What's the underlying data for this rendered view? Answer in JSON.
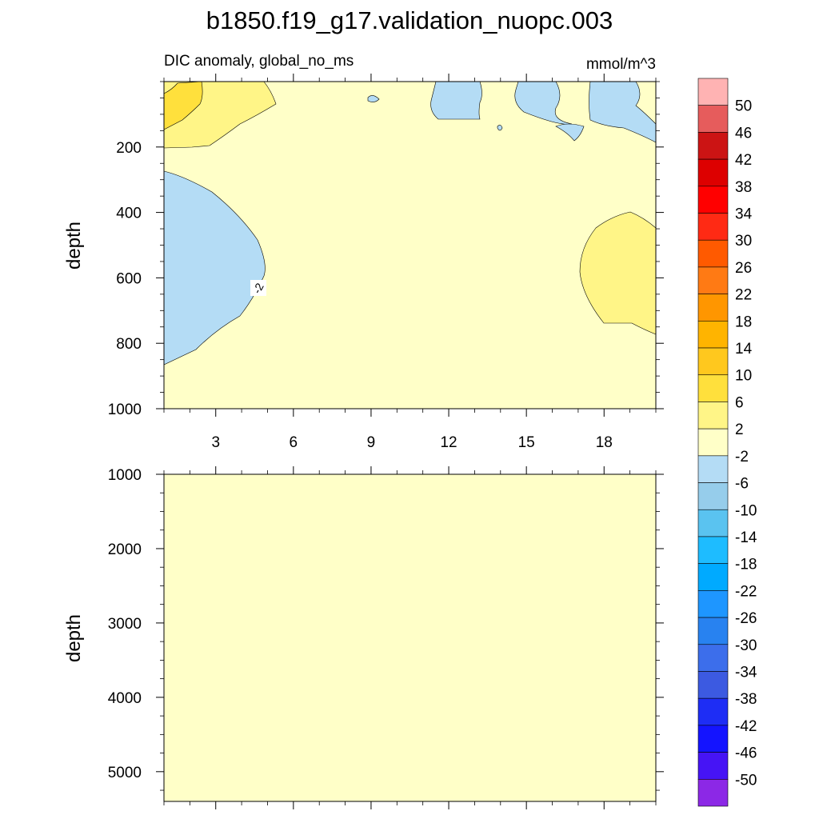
{
  "chart_data": {
    "type": "contour",
    "title": "b1850.f19_g17.validation_nuopc.003",
    "colorbar": {
      "levels": [
        50,
        46,
        42,
        38,
        34,
        30,
        26,
        22,
        18,
        14,
        10,
        6,
        2,
        -2,
        -6,
        -10,
        -14,
        -18,
        -22,
        -26,
        -30,
        -34,
        -38,
        -42,
        -46,
        -50
      ],
      "colors": [
        "#FFB3B3",
        "#E65C5C",
        "#CC1414",
        "#DD0000",
        "#FF0000",
        "#FF2A14",
        "#FF5A00",
        "#FF7A14",
        "#FF9600",
        "#FFB400",
        "#FFC81E",
        "#FFE03C",
        "#FFF587",
        "#FFFFC8",
        "#B4DCF5",
        "#96CDEB",
        "#5AC3F0",
        "#1EBCFF",
        "#00AAFF",
        "#1E96FF",
        "#2882F0",
        "#3C6EEB",
        "#3C5AE1",
        "#1E2DF5",
        "#1414FF",
        "#4614F5",
        "#8C28E6"
      ]
    },
    "panels": [
      {
        "subtitle_left": "DIC anomaly, global_no_ms",
        "subtitle_right": "mmol/m^3",
        "ylabel": "depth",
        "ylim": [
          1000,
          0
        ],
        "xlim": [
          1,
          20
        ],
        "yticks": [
          200,
          400,
          600,
          800,
          1000
        ],
        "xticks": [
          3,
          6,
          9,
          12,
          15,
          18
        ],
        "contour_label": "-2",
        "background_level": "-2 to 2"
      },
      {
        "ylabel": "depth",
        "ylim": [
          5400,
          1000
        ],
        "xlim": [
          1,
          20
        ],
        "yticks": [
          1000,
          2000,
          3000,
          4000,
          5000
        ],
        "background_level": "-2 to 2"
      }
    ]
  }
}
